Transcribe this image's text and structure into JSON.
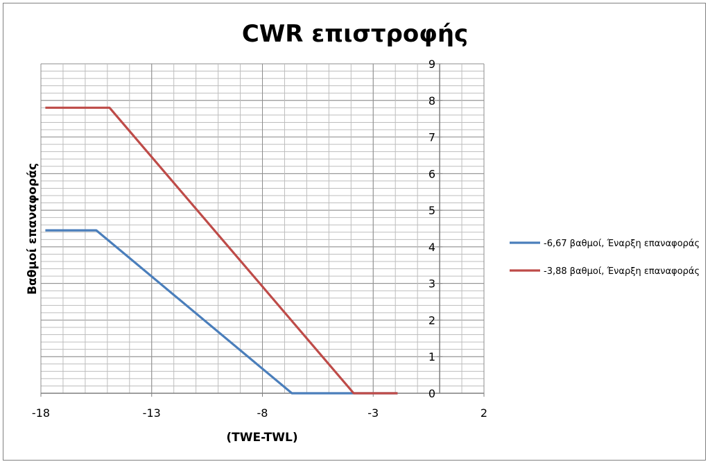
{
  "chart_data": {
    "type": "line",
    "title": "CWR επιστροφής",
    "xlabel": "(TWE-TWL)",
    "ylabel": "Βαθμοί επαναφοράς",
    "xlim": [
      -18,
      2
    ],
    "ylim": [
      0,
      9
    ],
    "x_ticks": [
      -18,
      -13,
      -8,
      -3,
      2
    ],
    "y_ticks": [
      0,
      1,
      2,
      3,
      4,
      5,
      6,
      7,
      8,
      9
    ],
    "y_axis_crosses_x": 0,
    "grid": true,
    "legend_position": "right",
    "series": [
      {
        "name": "-6,67 βαθμοί, Έναρξη επαναφοράς",
        "color": "#4a7ebb",
        "points": [
          [
            -17.8,
            4.45
          ],
          [
            -15.5,
            4.45
          ],
          [
            -6.67,
            0
          ],
          [
            -1.9,
            0
          ]
        ]
      },
      {
        "name": "-3,88 βαθμοί, Έναρξη επαναφοράς",
        "color": "#be4b48",
        "points": [
          [
            -17.8,
            7.8
          ],
          [
            -14.9,
            7.8
          ],
          [
            -3.88,
            0
          ],
          [
            -1.9,
            0
          ]
        ]
      }
    ]
  }
}
